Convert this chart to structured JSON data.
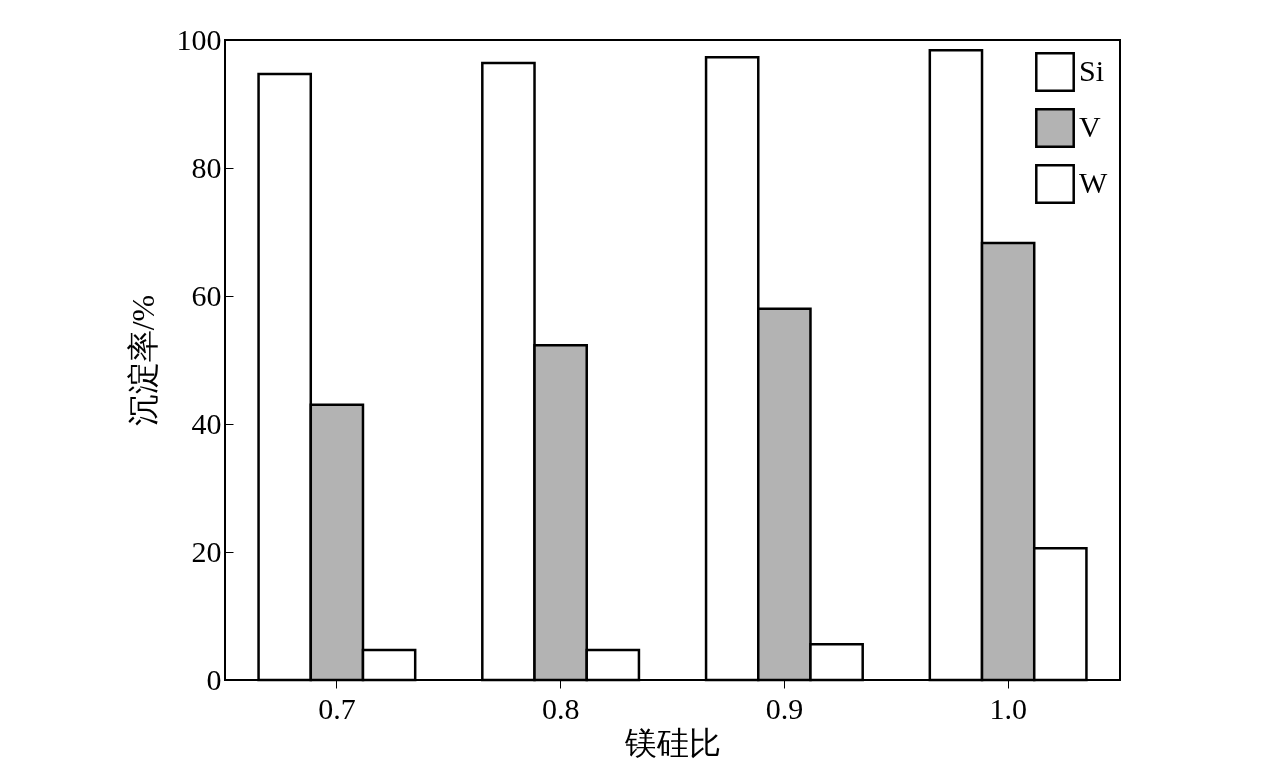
{
  "chart_data": {
    "type": "bar",
    "xlabel": "镁硅比",
    "ylabel": "沉淀率/%",
    "categories": [
      "0.7",
      "0.8",
      "0.9",
      "1.0"
    ],
    "series": [
      {
        "name": "Si",
        "color": "#ffffff",
        "values": [
          94.7,
          96.4,
          97.3,
          98.4
        ]
      },
      {
        "name": "V",
        "color": "#b3b3b3",
        "values": [
          43.0,
          52.3,
          58.0,
          68.3
        ]
      },
      {
        "name": "W",
        "color": "#ffffff",
        "values": [
          4.7,
          4.7,
          5.6,
          20.6
        ]
      }
    ],
    "ylim": [
      0,
      100
    ],
    "yticks": [
      0,
      20,
      40,
      60,
      80,
      100
    ],
    "grid": false,
    "legend": "top right"
  }
}
